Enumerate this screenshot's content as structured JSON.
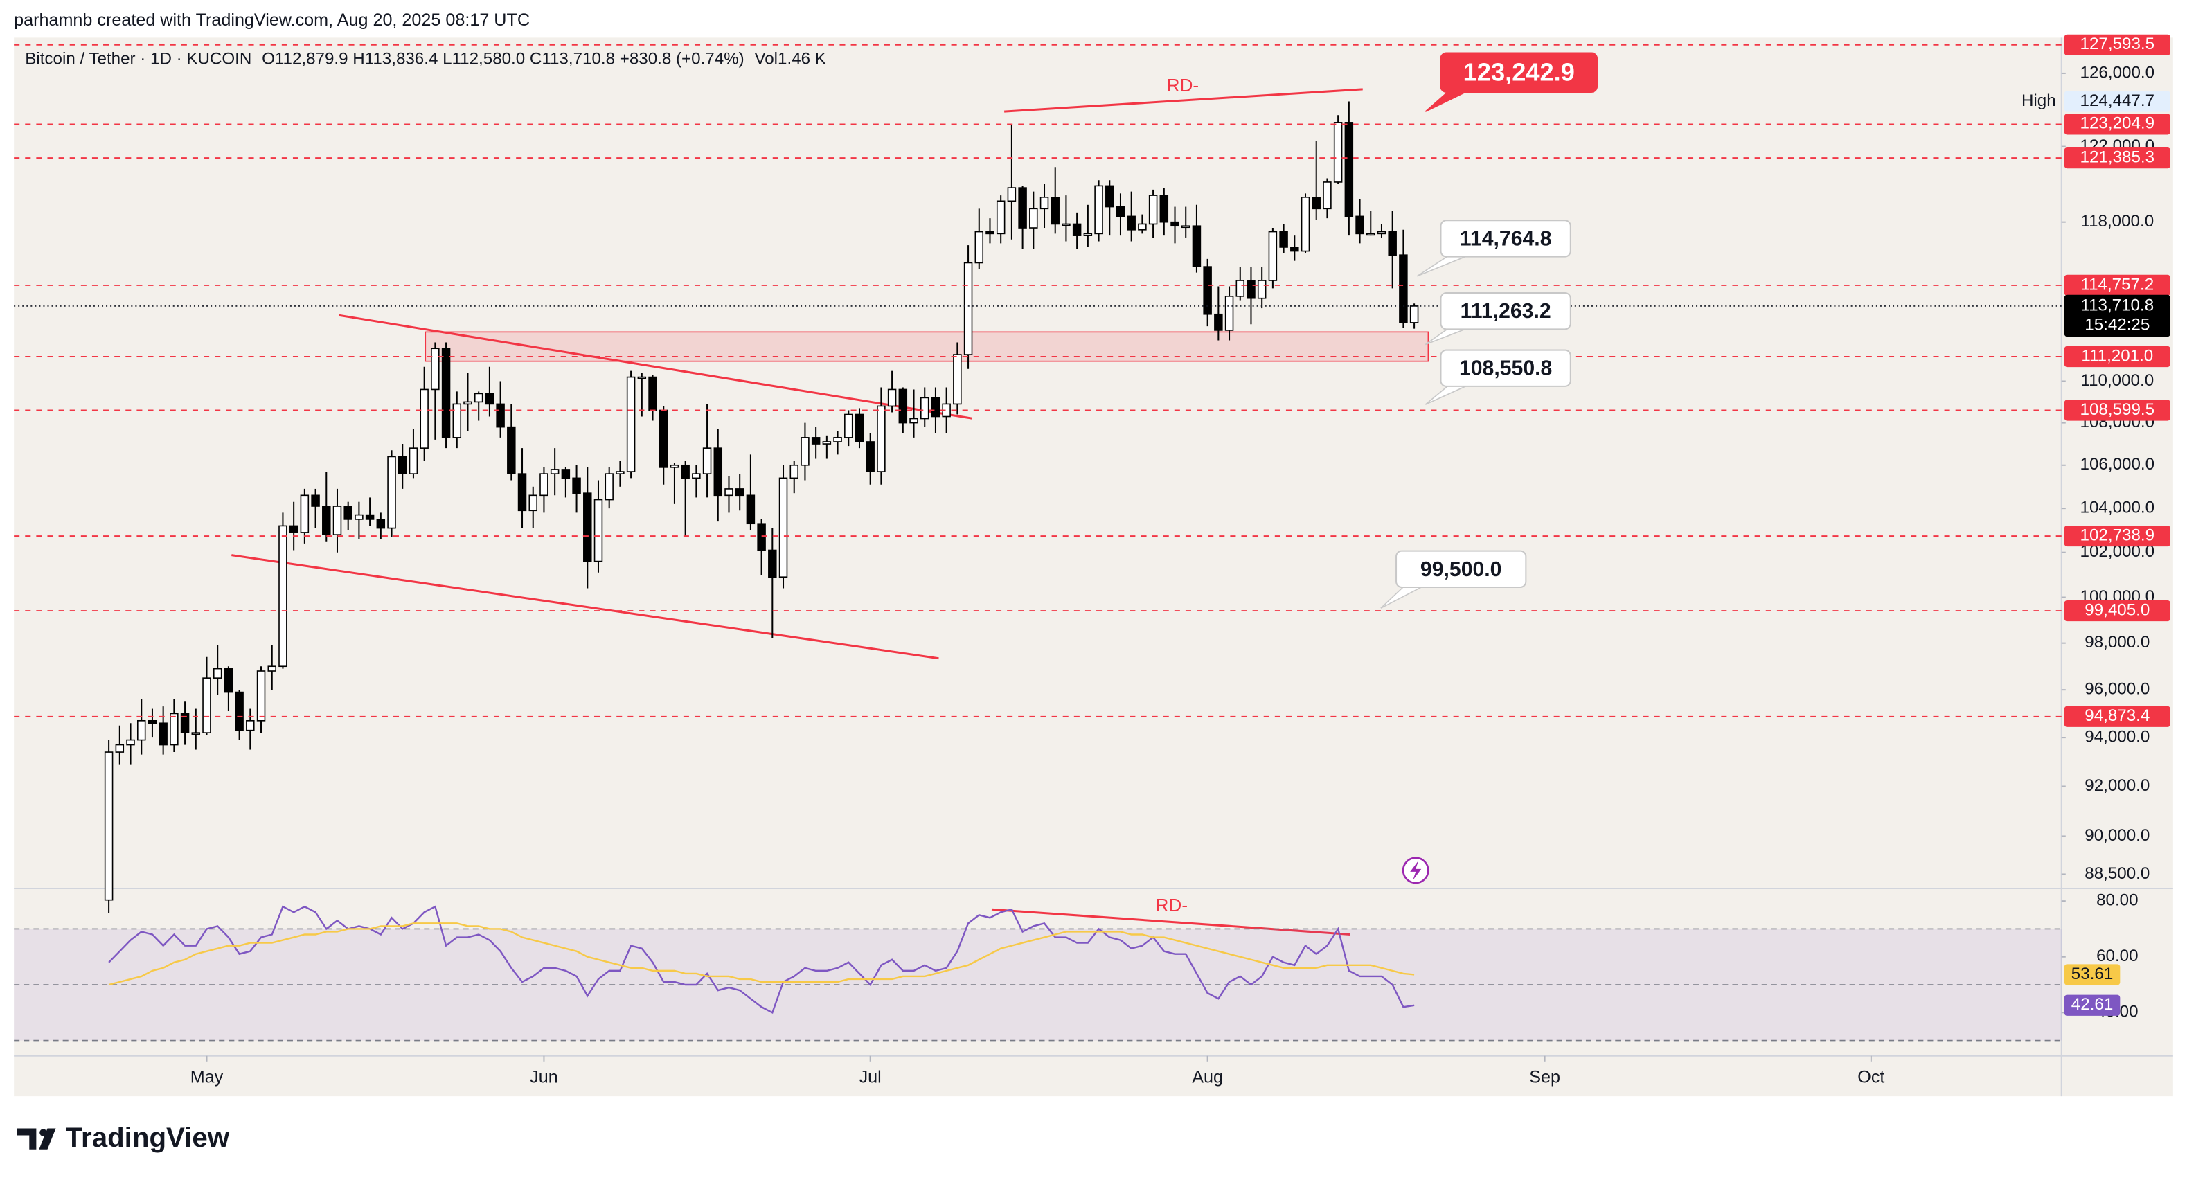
{
  "header": {
    "credit": "parhamnb created with TradingView.com, Aug 20, 2025 08:17 UTC"
  },
  "footer": {
    "logo": "TradingView"
  },
  "chart_data": [
    {
      "type": "candlestick",
      "symbol": "Bitcoin / Tether · 1D · KUCOIN",
      "ohlc": "O112,879.9  H113,836.4  L112,580.0  C113,710.8  +830.8 (+0.74%)",
      "volume": "Vol1.46 K",
      "log": true,
      "grid": false,
      "up_color": "#ffffff",
      "down_color": "#000000",
      "xlim": [
        -8.72,
        179.5
      ],
      "xticks": [
        {
          "value": 9,
          "label": "May"
        },
        {
          "value": 40,
          "label": "Jun"
        },
        {
          "value": 70,
          "label": "Jul"
        },
        {
          "value": 101,
          "label": "Aug"
        },
        {
          "value": 132,
          "label": "Sep"
        },
        {
          "value": 162,
          "label": "Oct"
        }
      ],
      "ylim": [
        88000,
        128000
      ],
      "yticks": [
        {
          "value": 126000,
          "label": "126,000.0"
        },
        {
          "value": 122000,
          "label": "122,000.0"
        },
        {
          "value": 118000,
          "label": "118,000.0"
        },
        {
          "value": 110000,
          "label": "110,000.0"
        },
        {
          "value": 108000,
          "label": "108,000.0"
        },
        {
          "value": 106000,
          "label": "106,000.0"
        },
        {
          "value": 104000,
          "label": "104,000.0"
        },
        {
          "value": 102000,
          "label": "102,000.0"
        },
        {
          "value": 100000,
          "label": "100,000.0"
        },
        {
          "value": 98000,
          "label": "98,000.0"
        },
        {
          "value": 96000,
          "label": "96,000.0"
        },
        {
          "value": 94000,
          "label": "94,000.0"
        },
        {
          "value": 92000,
          "label": "92,000.0"
        },
        {
          "value": 90000,
          "label": "90,000.0"
        },
        {
          "value": 88500,
          "label": "88,500.0"
        }
      ],
      "open": [
        87500,
        93400,
        93700,
        93900,
        94700,
        94600,
        93700,
        95000,
        94200,
        94200,
        96500,
        96900,
        95900,
        94300,
        94700,
        96800,
        97000,
        103200,
        102900,
        104600,
        104100,
        102800,
        104100,
        103500,
        103700,
        103500,
        103100,
        106400,
        105600,
        106800,
        109600,
        111600,
        107300,
        108900,
        109000,
        109400,
        108900,
        107800,
        105600,
        103900,
        104600,
        105600,
        105800,
        105400,
        104700,
        101600,
        104400,
        105600,
        105700,
        110200,
        110200,
        108600,
        105900,
        106000,
        105400,
        105600,
        106800,
        104600,
        104900,
        104600,
        103300,
        102100,
        100900,
        105400,
        106000,
        107300,
        107000,
        107100,
        107300,
        108400,
        107100,
        105700,
        108800,
        109600,
        108000,
        108200,
        109200,
        108300,
        108900,
        111300,
        115900,
        117500,
        117400,
        119100,
        119800,
        117700,
        118700,
        119300,
        117900,
        117900,
        117300,
        117400,
        119900,
        118800,
        118300,
        117600,
        117900,
        119400,
        118000,
        117800,
        117800,
        115700,
        113300,
        112500,
        114200,
        115000,
        114100,
        115000,
        117500,
        116700,
        116500,
        119300,
        118700,
        120100,
        123300,
        118300,
        117400,
        117400,
        117500,
        116300,
        112879.9
      ],
      "high": [
        93900,
        94500,
        94600,
        95600,
        95200,
        95300,
        95600,
        95500,
        95200,
        97400,
        97900,
        97000,
        96000,
        95200,
        97000,
        97900,
        103800,
        104300,
        104900,
        104900,
        105700,
        104900,
        104300,
        104300,
        104500,
        103800,
        106700,
        107000,
        107700,
        110700,
        111900,
        111900,
        109500,
        110400,
        109500,
        110700,
        110000,
        108900,
        106800,
        105000,
        105900,
        106800,
        105900,
        106000,
        105900,
        105300,
        105900,
        106200,
        110500,
        110400,
        110300,
        108800,
        106100,
        106200,
        106000,
        108900,
        107700,
        105500,
        105600,
        106500,
        103500,
        103100,
        106000,
        106200,
        108000,
        107800,
        107400,
        107600,
        108600,
        108700,
        107500,
        109700,
        110500,
        109700,
        109600,
        109700,
        109700,
        109700,
        111900,
        116800,
        118700,
        118200,
        119400,
        123200,
        119900,
        119600,
        120000,
        120900,
        119400,
        118500,
        118900,
        120200,
        120200,
        119500,
        119600,
        118400,
        119700,
        119800,
        118800,
        118800,
        118900,
        116100,
        114700,
        114700,
        115700,
        115700,
        115700,
        117700,
        117900,
        117300,
        119500,
        122300,
        120300,
        123700,
        124447.7,
        119200,
        118600,
        117900,
        118600,
        117600,
        113836.4
      ],
      "low": [
        87000,
        92900,
        92900,
        93300,
        94000,
        93300,
        93400,
        93700,
        93500,
        94100,
        95800,
        95100,
        93900,
        93500,
        94200,
        96000,
        96900,
        102100,
        102400,
        103100,
        102500,
        102000,
        103000,
        102600,
        103200,
        102600,
        102700,
        104900,
        105400,
        106200,
        107200,
        106800,
        106800,
        107600,
        108100,
        108300,
        107300,
        105300,
        103100,
        103100,
        103800,
        104600,
        104500,
        103800,
        100400,
        101100,
        104000,
        105000,
        105400,
        108300,
        108100,
        105100,
        104200,
        102700,
        104500,
        104500,
        103400,
        103800,
        103900,
        103000,
        101000,
        98200,
        100400,
        104700,
        105300,
        106300,
        106300,
        106500,
        106900,
        106800,
        105100,
        105100,
        108500,
        107500,
        107300,
        107800,
        107500,
        107500,
        108400,
        110600,
        115600,
        116900,
        116900,
        117100,
        116600,
        116600,
        117700,
        117400,
        117000,
        116600,
        116700,
        117000,
        117300,
        117300,
        117000,
        117400,
        117200,
        117300,
        116900,
        117200,
        115400,
        112700,
        112000,
        112000,
        114000,
        112800,
        113600,
        114600,
        116400,
        116000,
        116400,
        118100,
        118200,
        120000,
        117300,
        116900,
        117300,
        117200,
        114600,
        112600,
        112580.0
      ],
      "close": [
        93400,
        93700,
        93900,
        94700,
        94600,
        93700,
        95000,
        94200,
        94200,
        96500,
        96900,
        95900,
        94300,
        94700,
        96800,
        97000,
        103200,
        102900,
        104600,
        104100,
        102800,
        104100,
        103500,
        103700,
        103500,
        103100,
        106400,
        105600,
        106800,
        109600,
        111600,
        107300,
        108900,
        109000,
        109400,
        108900,
        107800,
        105600,
        103900,
        104600,
        105600,
        105800,
        105400,
        104700,
        101600,
        104400,
        105600,
        105700,
        110200,
        110200,
        108600,
        105900,
        106000,
        105400,
        105600,
        106800,
        104600,
        104900,
        104600,
        103300,
        102100,
        100900,
        105400,
        106000,
        107300,
        107000,
        107100,
        107300,
        108400,
        107100,
        105700,
        108800,
        109600,
        108000,
        108200,
        109200,
        108300,
        108900,
        111300,
        115900,
        117500,
        117400,
        119100,
        119800,
        117700,
        118700,
        119300,
        117900,
        117900,
        117300,
        117400,
        119900,
        118800,
        118300,
        117600,
        117900,
        119400,
        118000,
        117800,
        117800,
        115700,
        113300,
        112500,
        114200,
        115000,
        114100,
        115000,
        117500,
        116700,
        116500,
        119300,
        118700,
        120100,
        123300,
        118300,
        117400,
        117400,
        117500,
        116300,
        112900,
        113710.8
      ],
      "level_color": "#f23645",
      "levels": [
        {
          "value": 127593.5,
          "label": "127,593.5"
        },
        {
          "value": 123204.9,
          "label": "123,204.9"
        },
        {
          "value": 121385.3,
          "label": "121,385.3"
        },
        {
          "value": 114757.2,
          "label": "114,757.2"
        },
        {
          "value": 111201.0,
          "label": "111,201.0"
        },
        {
          "value": 108599.5,
          "label": "108,599.5"
        },
        {
          "value": 102738.9,
          "label": "102,738.9"
        },
        {
          "value": 99405.0,
          "label": "99,405.0"
        },
        {
          "value": 94873.4,
          "label": "94,873.4"
        }
      ],
      "high_marker": {
        "text": "High",
        "value": 124447.7,
        "label": "124,447.7"
      },
      "current_price": {
        "value": 113710.8,
        "label": "113,710.8",
        "countdown": "15:42:25"
      },
      "annotations": [
        "RD-",
        "123,242.9",
        "114,764.8",
        "111,263.2",
        "108,550.8",
        "99,500.0"
      ]
    },
    {
      "type": "line",
      "xlim": [
        -8.72,
        179.5
      ],
      "ylim": [
        24.5,
        84.5
      ],
      "yticks": [
        {
          "value": 80,
          "label": "80.00"
        },
        {
          "value": 60,
          "label": "60.00"
        },
        {
          "value": 40,
          "label": "40.00"
        }
      ],
      "bands": [
        70,
        50,
        30
      ],
      "series": [
        {
          "color": "#7e57c2",
          "values": [
            58,
            62,
            66,
            69,
            68,
            64,
            68,
            64,
            64,
            70,
            71,
            67,
            61,
            62,
            67,
            68,
            78,
            76,
            78,
            76,
            70,
            73,
            70,
            71,
            70,
            68,
            74,
            70,
            72,
            76,
            78,
            64,
            67,
            67,
            68,
            66,
            62,
            56,
            51,
            53,
            56,
            56,
            55,
            53,
            46,
            52,
            55,
            55,
            64,
            63,
            58,
            51,
            51,
            50,
            50,
            54,
            48,
            49,
            48,
            45,
            42,
            40,
            51,
            53,
            56,
            55,
            55,
            56,
            58,
            54,
            50,
            57,
            59,
            55,
            55,
            57,
            55,
            56,
            62,
            72,
            75,
            74,
            76,
            77,
            69,
            71,
            72,
            67,
            67,
            65,
            65,
            70,
            67,
            66,
            63,
            64,
            67,
            62,
            61,
            61,
            54,
            47,
            45,
            51,
            53,
            50,
            53,
            60,
            58,
            57,
            64,
            61,
            64,
            70,
            55,
            53,
            53,
            53,
            50,
            42,
            42.61
          ]
        },
        {
          "color": "#f7c948",
          "values": [
            50,
            51,
            52,
            53,
            55,
            56,
            58,
            59,
            61,
            62,
            63,
            64,
            64,
            65,
            65,
            65,
            66,
            67,
            68,
            68,
            69,
            69,
            70,
            70,
            70,
            71,
            71,
            71,
            72,
            72,
            72,
            72,
            72,
            71,
            71,
            70,
            70,
            69,
            67,
            66,
            65,
            64,
            63,
            62,
            60,
            59,
            58,
            57,
            56,
            56,
            55,
            55,
            55,
            54,
            54,
            53,
            53,
            53,
            52,
            52,
            51,
            51,
            51,
            51,
            51,
            51,
            51,
            51,
            52,
            52,
            52,
            52,
            52,
            53,
            53,
            53,
            54,
            55,
            56,
            57,
            59,
            61,
            63,
            64,
            65,
            66,
            67,
            68,
            69,
            69,
            69,
            69,
            69,
            69,
            68,
            68,
            67,
            67,
            66,
            65,
            64,
            63,
            62,
            61,
            60,
            59,
            58,
            57,
            56,
            56,
            56,
            56,
            57,
            57,
            57,
            57,
            57,
            56,
            55,
            54,
            53.61
          ]
        }
      ],
      "annotations": [
        "RD-"
      ]
    }
  ]
}
